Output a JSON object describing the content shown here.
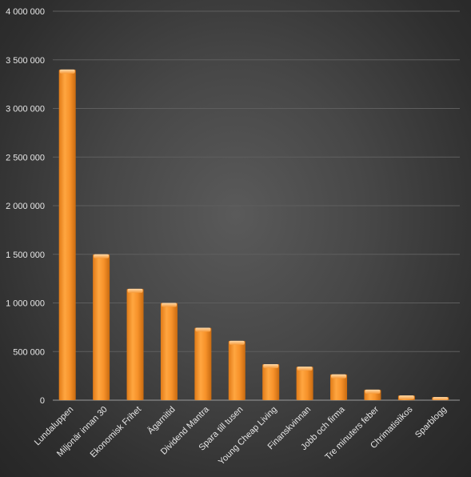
{
  "chart_data": {
    "type": "bar",
    "title": "",
    "xlabel": "",
    "ylabel": "",
    "categories": [
      "Lundaluppen",
      "Miljonär innan 30",
      "Ekonomisk Frihet",
      "Ägarnitid",
      "Dividend Mantra",
      "Spara till tusen",
      "Young Cheap Living",
      "Finanskvinnan",
      "Jobb och firma",
      "Tre minuters feber",
      "Chrimatistikos",
      "Sparblogg"
    ],
    "values": [
      3400000,
      1500000,
      1145000,
      1000000,
      745000,
      610000,
      370000,
      345000,
      265000,
      108000,
      48000,
      32000
    ],
    "ylim": [
      0,
      4000000
    ],
    "yticks": [
      "0",
      "500 000",
      "1 000 000",
      "1 500 000",
      "2 000 000",
      "2 500 000",
      "3 000 000",
      "3 500 000",
      "4 000 000"
    ],
    "grid": true,
    "legend": "none",
    "bar_color": "#f7922a",
    "bar_highlight": "#ffc078",
    "background": "#3f3f3f"
  }
}
